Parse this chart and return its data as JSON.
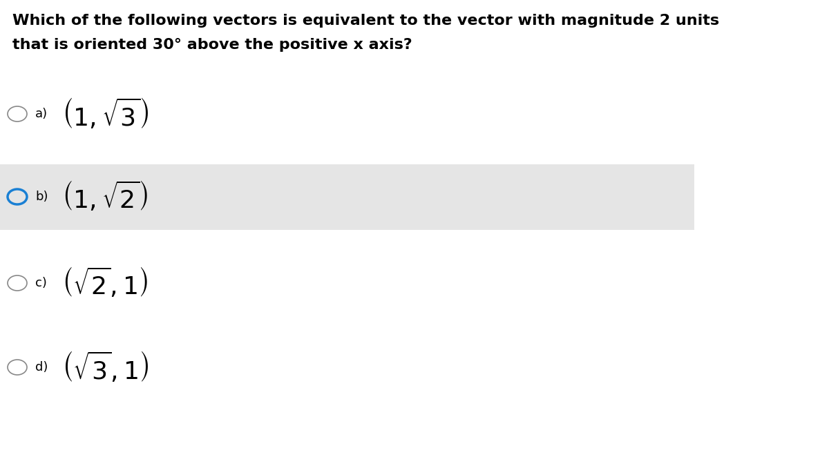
{
  "title_line1": "Which of the following vectors is equivalent to the vector with magnitude 2 units",
  "title_line2": "that is oriented 30° above the positive x axis?",
  "options": [
    {
      "label": "a)",
      "math": "$\\left(1, \\sqrt{3}\\right)$",
      "highlighted": false
    },
    {
      "label": "b)",
      "math": "$\\left(1, \\sqrt{2}\\right)$",
      "highlighted": true
    },
    {
      "label": "c)",
      "math": "$\\left(\\sqrt{2}, 1\\right)$",
      "highlighted": false
    },
    {
      "label": "d)",
      "math": "$\\left(\\sqrt{3}, 1\\right)$",
      "highlighted": false
    }
  ],
  "background_color": "#ffffff",
  "highlight_color": "#e5e5e5",
  "circle_color_default": "#888888",
  "circle_color_selected": "#1a80d4",
  "title_fontsize": 16,
  "option_label_fontsize": 13,
  "option_math_fontsize": 26,
  "fig_width": 12.0,
  "fig_height": 6.75,
  "dpi": 100
}
